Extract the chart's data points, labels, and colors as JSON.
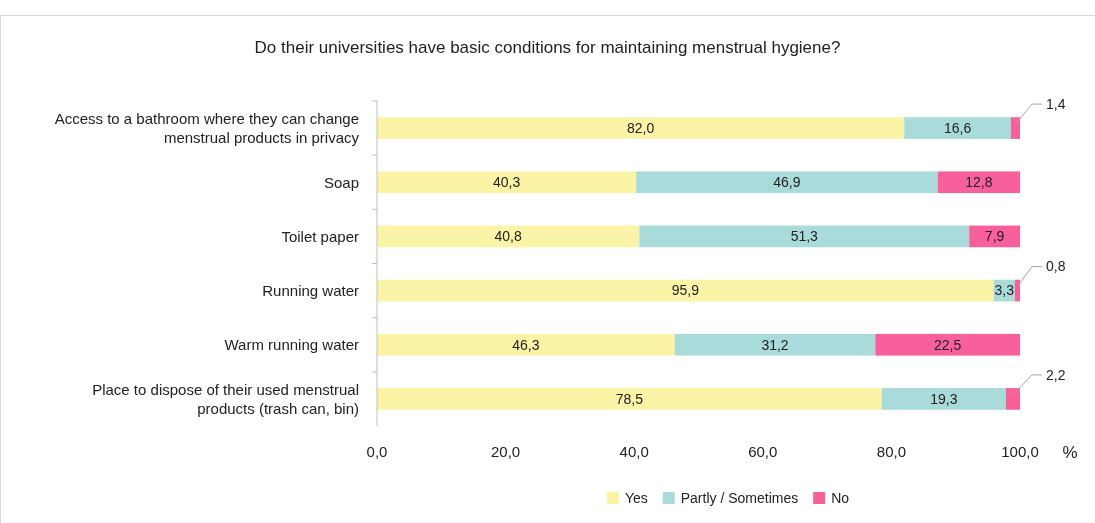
{
  "chart_data": {
    "type": "bar",
    "orientation": "horizontal",
    "stacked": true,
    "title": "Do their universities have basic conditions for maintaining menstrual hygiene?",
    "xlabel": "%",
    "categories": [
      "Access to a bathroom where they can change menstrual products in privacy",
      "Soap",
      "Toilet paper",
      "Running water",
      "Warm running water",
      "Place to dispose of their used menstrual products (trash can, bin)"
    ],
    "series": [
      {
        "name": "Yes",
        "color": "#fbf3a5",
        "values": [
          82.0,
          40.3,
          40.8,
          95.9,
          46.3,
          78.5
        ],
        "value_labels": [
          "82,0",
          "40,3",
          "40,8",
          "95,9",
          "46,3",
          "78,5"
        ]
      },
      {
        "name": "Partly / Sometimes",
        "color": "#a8dbd9",
        "values": [
          16.6,
          46.9,
          51.3,
          3.3,
          31.2,
          19.3
        ],
        "value_labels": [
          "16,6",
          "46,9",
          "51,3",
          "3,3",
          "31,2",
          "19,3"
        ]
      },
      {
        "name": "No",
        "color": "#f7609a",
        "values": [
          1.4,
          12.8,
          7.9,
          0.8,
          22.5,
          2.2
        ],
        "value_labels": [
          "1,4",
          "12,8",
          "7,9",
          "0,8",
          "22,5",
          "2,2"
        ]
      }
    ],
    "xlim": [
      0,
      100
    ],
    "xticks": [
      {
        "value": 0,
        "label": "0,0"
      },
      {
        "value": 20,
        "label": "20,0"
      },
      {
        "value": 40,
        "label": "40,0"
      },
      {
        "value": 60,
        "label": "60,0"
      },
      {
        "value": 80,
        "label": "80,0"
      },
      {
        "value": 100,
        "label": "100,0"
      }
    ],
    "legend": "bottom"
  }
}
